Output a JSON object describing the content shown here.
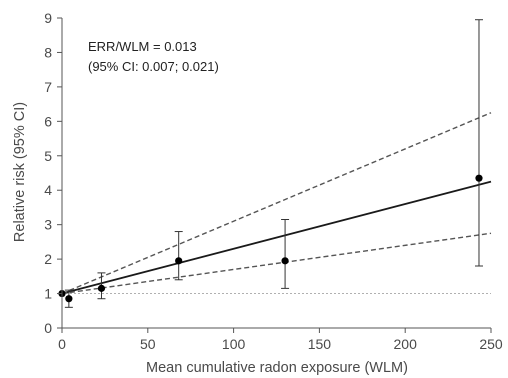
{
  "chart_data": {
    "type": "scatter",
    "xlabel": "Mean cumulative radon exposure (WLM)",
    "ylabel": "Relative risk (95% CI)",
    "xlim": [
      0,
      250
    ],
    "ylim": [
      0,
      9
    ],
    "xticks": [
      0,
      50,
      100,
      150,
      200,
      250
    ],
    "yticks": [
      0,
      1,
      2,
      3,
      4,
      5,
      6,
      7,
      8,
      9
    ],
    "grid": false,
    "legend": "none",
    "annotations": [
      "ERR/WLM = 0.013",
      "(95% CI: 0.007; 0.021)"
    ],
    "points": [
      {
        "x": 0,
        "y": 1.0,
        "lower": 1.0,
        "upper": 1.0
      },
      {
        "x": 4,
        "y": 0.85,
        "lower": 0.6,
        "upper": 1.1
      },
      {
        "x": 23,
        "y": 1.15,
        "lower": 0.85,
        "upper": 1.6
      },
      {
        "x": 68,
        "y": 1.95,
        "lower": 1.4,
        "upper": 2.8
      },
      {
        "x": 130,
        "y": 1.95,
        "lower": 1.15,
        "upper": 3.15
      },
      {
        "x": 243,
        "y": 4.35,
        "lower": 1.8,
        "upper": 8.95
      }
    ],
    "fit_lines": [
      {
        "style": "solid",
        "x": [
          0,
          250
        ],
        "y": [
          1.0,
          4.25
        ]
      },
      {
        "style": "dashed",
        "x": [
          0,
          250
        ],
        "y": [
          1.0,
          6.25
        ]
      },
      {
        "style": "dashed",
        "x": [
          0,
          250
        ],
        "y": [
          1.0,
          2.75
        ]
      }
    ],
    "reference_line": {
      "style": "dotted",
      "y": 1
    },
    "colors": {
      "points": "#000000",
      "fit": "#1a1a1a",
      "ci_lines": "#555555",
      "reference": "#b0b0b0",
      "axis": "#555555",
      "text": "#4a4a4a"
    }
  }
}
